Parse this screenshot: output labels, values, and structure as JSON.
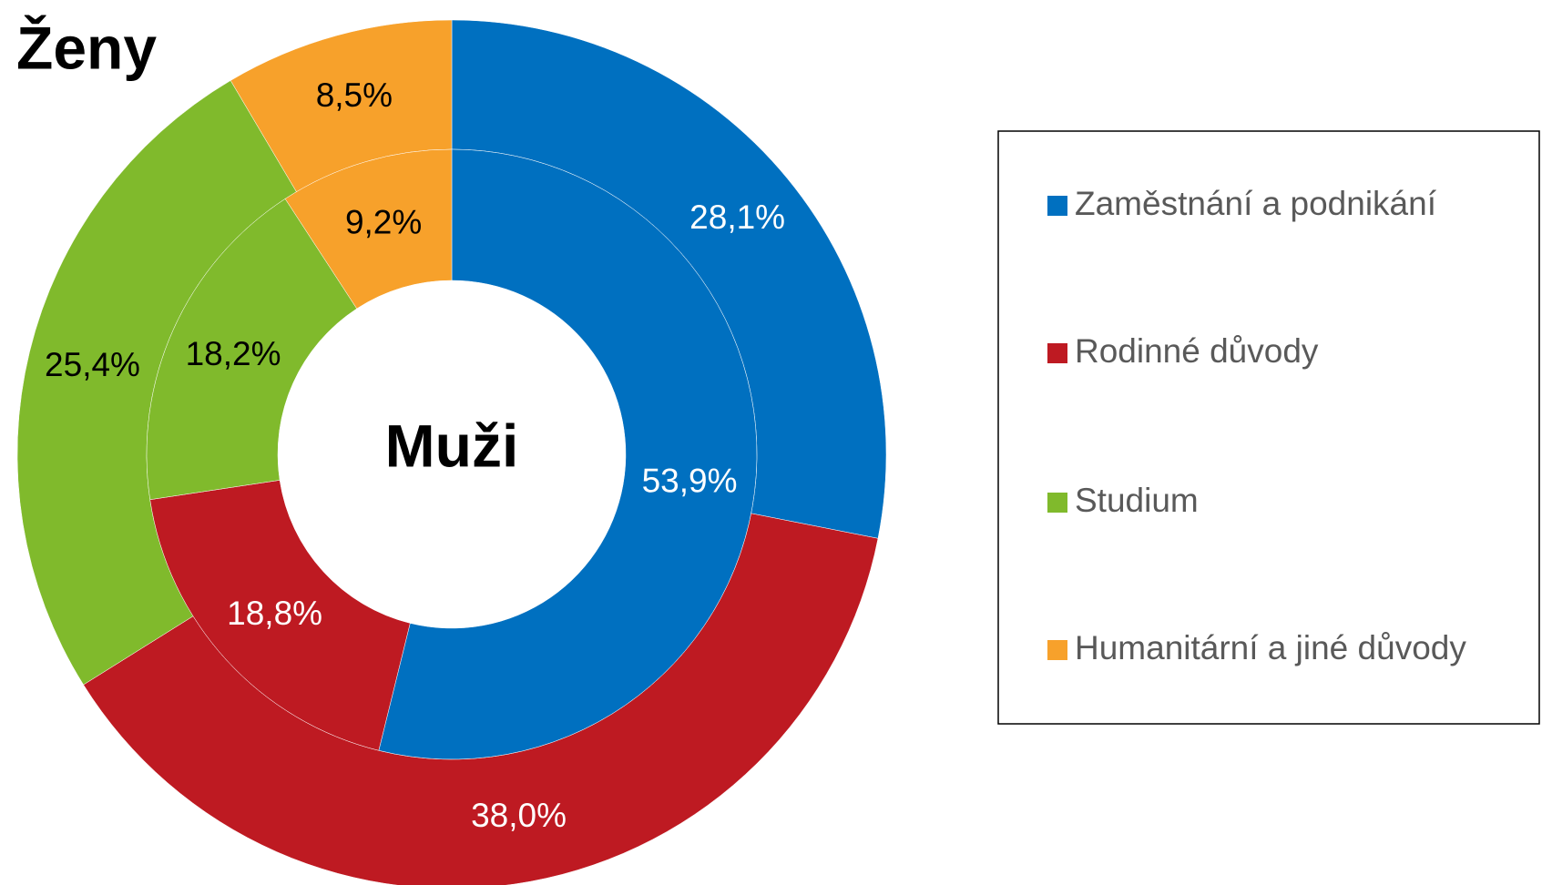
{
  "chart_data": [
    {
      "type": "donut",
      "title": "Ženy",
      "categories": [
        "Zaměstnání a podnikání",
        "Rodinné důvody",
        "Studium",
        "Humanitární a jiné důvody"
      ],
      "colors": [
        "#0070c0",
        "#be1a22",
        "#80ba2c",
        "#f7a12b"
      ],
      "values": [
        28.1,
        38.0,
        25.4,
        8.5
      ],
      "value_labels": [
        "28,1%",
        "38,0%",
        "25,4%",
        "8,5%"
      ]
    },
    {
      "type": "donut",
      "title": "Muži",
      "categories": [
        "Zaměstnání a podnikání",
        "Rodinné důvody",
        "Studium",
        "Humanitární a jiné důvody"
      ],
      "colors": [
        "#0070c0",
        "#be1a22",
        "#80ba2c",
        "#f7a12b"
      ],
      "values": [
        53.9,
        18.8,
        18.2,
        9.2
      ],
      "value_labels": [
        "53,9%",
        "18,8%",
        "18,2%",
        "9,2%"
      ]
    }
  ]
}
